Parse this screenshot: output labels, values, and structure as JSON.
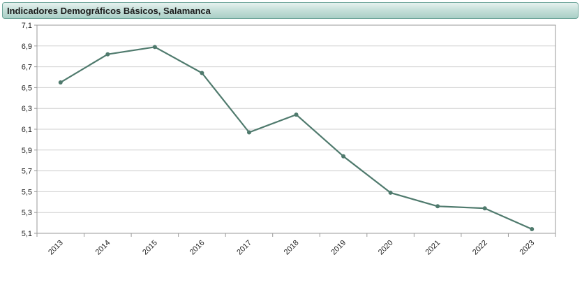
{
  "window": {
    "title": "Indicadores Demográficos Básicos, Salamanca"
  },
  "chart_data": {
    "type": "line",
    "title": "",
    "xlabel": "",
    "ylabel": "",
    "x": [
      "2013",
      "2014",
      "2015",
      "2016",
      "2017",
      "2018",
      "2019",
      "2020",
      "2021",
      "2022",
      "2023"
    ],
    "series": [
      {
        "values": [
          6.55,
          6.82,
          6.89,
          6.64,
          6.07,
          6.24,
          5.84,
          5.49,
          5.36,
          5.34,
          5.14
        ],
        "color": "#4f7a6d"
      }
    ],
    "ylim": [
      5.1,
      7.1
    ],
    "yticks": [
      "5,1",
      "5,3",
      "5,5",
      "5,7",
      "5,9",
      "6,1",
      "6,3",
      "6,5",
      "6,7",
      "6,9",
      "7,1"
    ],
    "grid": true,
    "legend": "none"
  }
}
